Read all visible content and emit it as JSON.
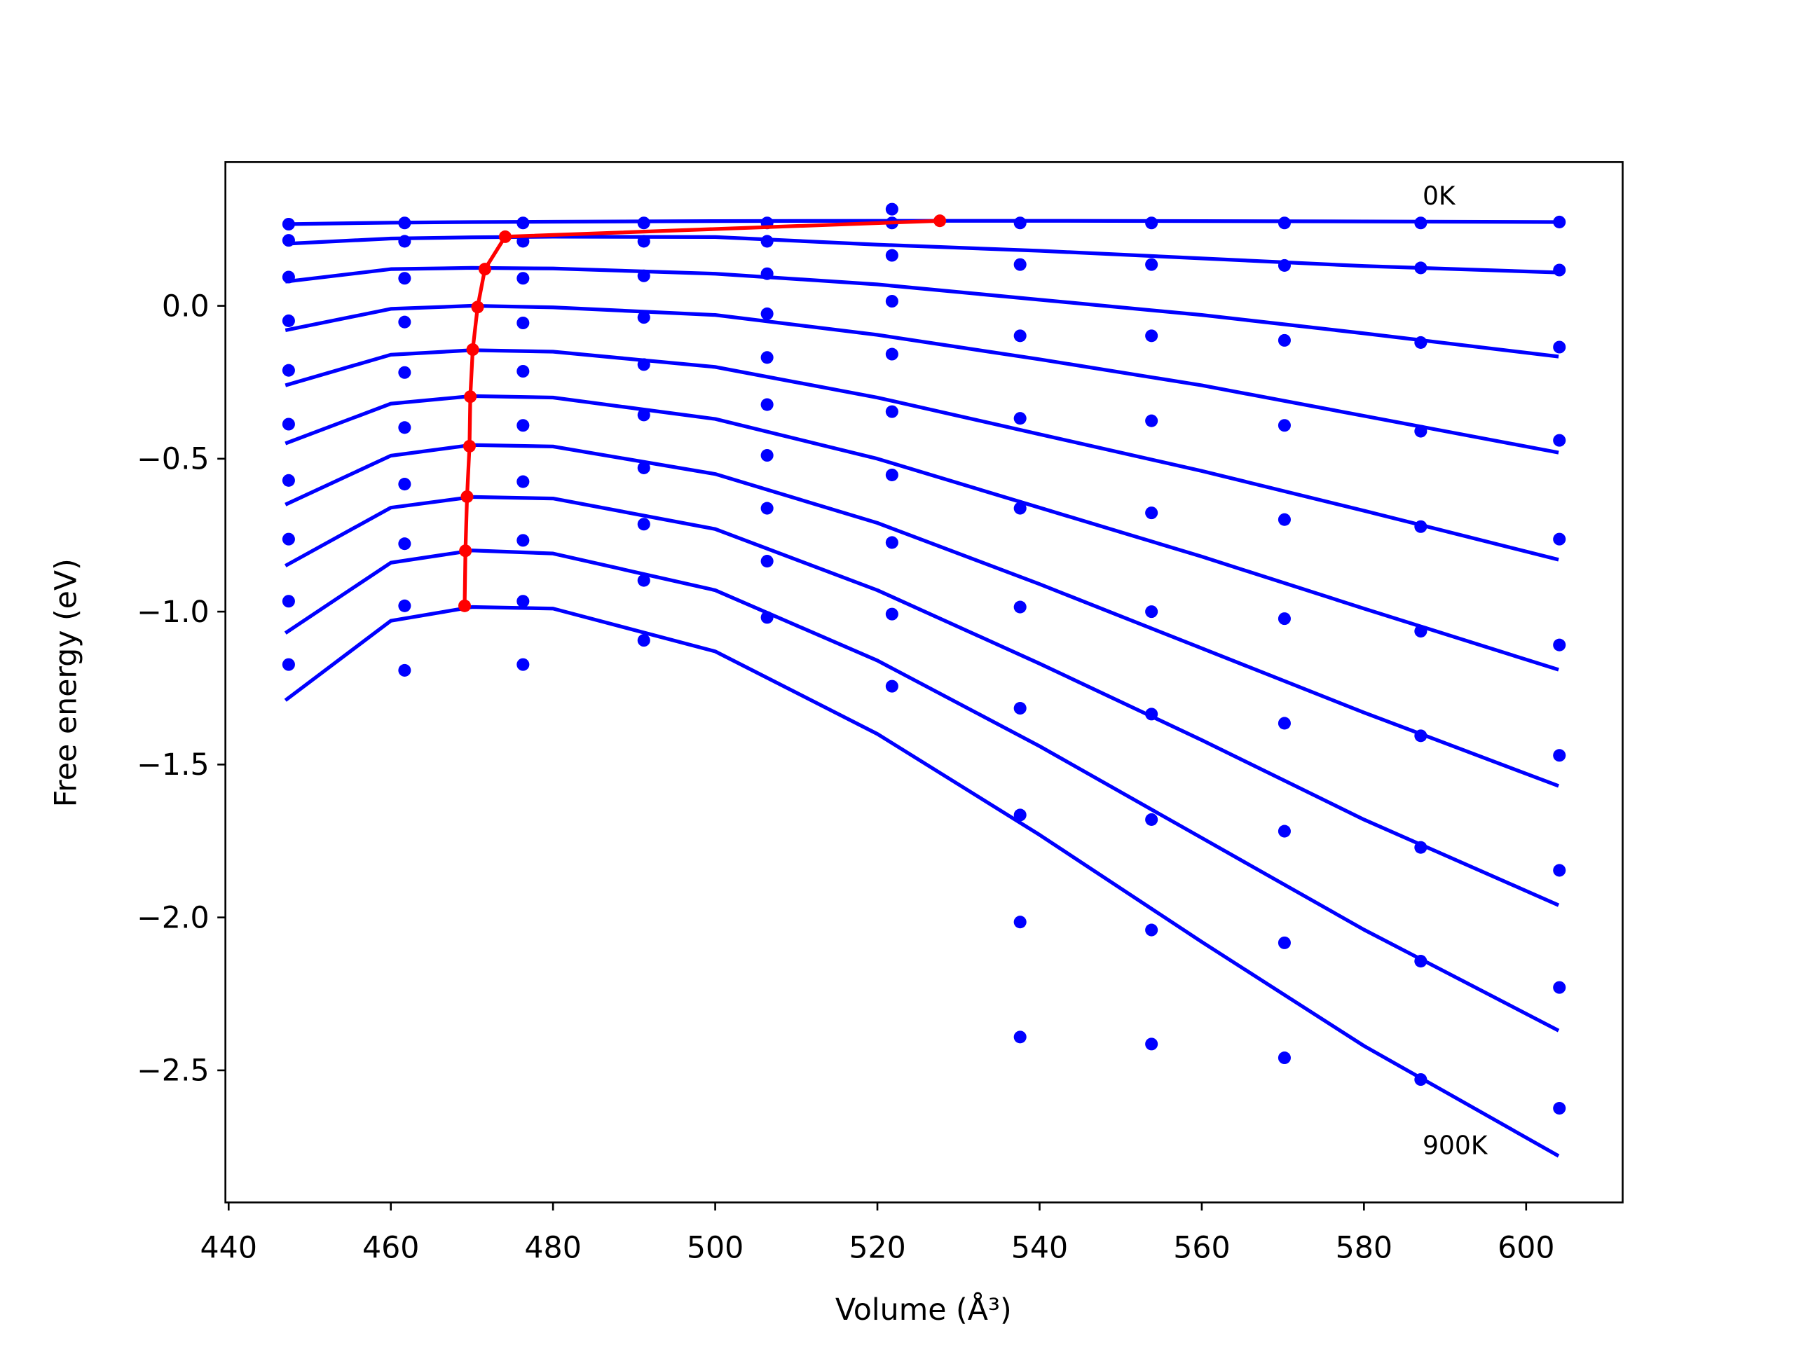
{
  "chart_data": {
    "type": "line",
    "xlabel": "Volume (Å³)",
    "ylabel": "Free energy (eV)",
    "annotations": [
      {
        "text": "0K"
      },
      {
        "text": "900K"
      }
    ],
    "xlim": [
      439.6,
      611.9
    ],
    "ylim": [
      -2.932,
      0.47
    ],
    "xticks": [
      440,
      460,
      480,
      500,
      520,
      540,
      560,
      580,
      600
    ],
    "yticks": [
      {
        "value": 0,
        "label": "0.0"
      },
      {
        "value": -0.5,
        "label": "−0.5"
      },
      {
        "value": -1.0,
        "label": "−1.0"
      },
      {
        "value": -1.5,
        "label": "−1.5"
      },
      {
        "value": -2.0,
        "label": "−2.0"
      },
      {
        "value": -2.5,
        "label": "−2.5"
      }
    ],
    "points": {
      "x": [
        447.4,
        461.7,
        476.3,
        491.2,
        506.4,
        521.8,
        537.6,
        553.8,
        570.2,
        587.0,
        604.1
      ],
      "series": [
        {
          "color": "#0000ff",
          "values": [
            0.267,
            0.271,
            0.271,
            0.271,
            0.271,
            0.316,
            0.271,
            0.271,
            0.271,
            0.271,
            0.274
          ]
        },
        {
          "color": "#0000ff",
          "values": [
            0.214,
            0.211,
            0.211,
            0.211,
            0.211,
            0.271,
            0.135,
            0.135,
            0.132,
            0.124,
            0.117
          ]
        },
        {
          "color": "#0000ff",
          "values": [
            0.094,
            0.09,
            0.09,
            0.098,
            0.105,
            0.165,
            -0.098,
            -0.098,
            -0.113,
            -0.12,
            -0.135
          ]
        },
        {
          "color": "#0000ff",
          "values": [
            -0.049,
            -0.053,
            -0.056,
            -0.038,
            -0.026,
            0.015,
            -0.368,
            -0.376,
            -0.391,
            -0.41,
            -0.44
          ]
        },
        {
          "color": "#0000ff",
          "values": [
            -0.211,
            -0.218,
            -0.214,
            -0.192,
            -0.169,
            -0.158,
            -0.662,
            -0.677,
            -0.699,
            -0.722,
            -0.763
          ]
        },
        {
          "color": "#0000ff",
          "values": [
            -0.387,
            -0.398,
            -0.391,
            -0.357,
            -0.323,
            -0.346,
            -0.985,
            -1.0,
            -1.023,
            -1.064,
            -1.109
          ]
        },
        {
          "color": "#0000ff",
          "values": [
            -0.571,
            -0.583,
            -0.575,
            -0.53,
            -0.489,
            -0.553,
            -1.316,
            -1.335,
            -1.365,
            -1.406,
            -1.47
          ]
        },
        {
          "color": "#0000ff",
          "values": [
            -0.763,
            -0.778,
            -0.767,
            -0.714,
            -0.662,
            -0.774,
            -1.665,
            -1.68,
            -1.718,
            -1.771,
            -1.846
          ]
        },
        {
          "color": "#0000ff",
          "values": [
            -0.966,
            -0.981,
            -0.966,
            -0.898,
            -0.835,
            -1.008,
            -2.015,
            -2.041,
            -2.083,
            -2.143,
            -2.229
          ]
        },
        {
          "color": "#0000ff",
          "values": [
            -1.173,
            -1.192,
            -1.173,
            -1.094,
            -1.019,
            -1.244,
            -2.391,
            -2.414,
            -2.459,
            -2.53,
            -2.624
          ]
        }
      ]
    },
    "fits": {
      "x": [
        447,
        460,
        470,
        480,
        500,
        520,
        540,
        560,
        580,
        604
      ],
      "series": [
        {
          "color": "#0000ff",
          "values": [
            0.267,
            0.272,
            0.274,
            0.275,
            0.277,
            0.278,
            0.278,
            0.277,
            0.276,
            0.274
          ]
        },
        {
          "color": "#0000ff",
          "values": [
            0.203,
            0.22,
            0.224,
            0.226,
            0.225,
            0.2,
            0.18,
            0.155,
            0.13,
            0.109
          ]
        },
        {
          "color": "#0000ff",
          "values": [
            0.079,
            0.12,
            0.124,
            0.122,
            0.105,
            0.07,
            0.02,
            -0.03,
            -0.09,
            -0.166
          ]
        },
        {
          "color": "#0000ff",
          "values": [
            -0.08,
            -0.01,
            0.0,
            -0.005,
            -0.03,
            -0.095,
            -0.175,
            -0.26,
            -0.36,
            -0.48
          ]
        },
        {
          "color": "#0000ff",
          "values": [
            -0.26,
            -0.16,
            -0.145,
            -0.15,
            -0.2,
            -0.3,
            -0.42,
            -0.54,
            -0.67,
            -0.83
          ]
        },
        {
          "color": "#0000ff",
          "values": [
            -0.45,
            -0.32,
            -0.295,
            -0.3,
            -0.37,
            -0.5,
            -0.66,
            -0.82,
            -0.99,
            -1.19
          ]
        },
        {
          "color": "#0000ff",
          "values": [
            -0.65,
            -0.49,
            -0.455,
            -0.46,
            -0.55,
            -0.71,
            -0.91,
            -1.12,
            -1.33,
            -1.57
          ]
        },
        {
          "color": "#0000ff",
          "values": [
            -0.85,
            -0.66,
            -0.625,
            -0.63,
            -0.73,
            -0.93,
            -1.17,
            -1.42,
            -1.68,
            -1.96
          ]
        },
        {
          "color": "#0000ff",
          "values": [
            -1.07,
            -0.84,
            -0.8,
            -0.81,
            -0.93,
            -1.16,
            -1.44,
            -1.74,
            -2.04,
            -2.37
          ]
        },
        {
          "color": "#0000ff",
          "values": [
            -1.29,
            -1.03,
            -0.985,
            -0.99,
            -1.13,
            -1.4,
            -1.73,
            -2.08,
            -2.42,
            -2.78
          ]
        }
      ]
    },
    "minimum": {
      "color": "#ff0000",
      "x": [
        527.7,
        474.1,
        471.6,
        470.7,
        470.1,
        469.8,
        469.7,
        469.4,
        469.2,
        469.1
      ],
      "values": [
        0.278,
        0.226,
        0.12,
        -0.004,
        -0.143,
        -0.297,
        -0.459,
        -0.624,
        -0.801,
        -0.981
      ]
    }
  }
}
